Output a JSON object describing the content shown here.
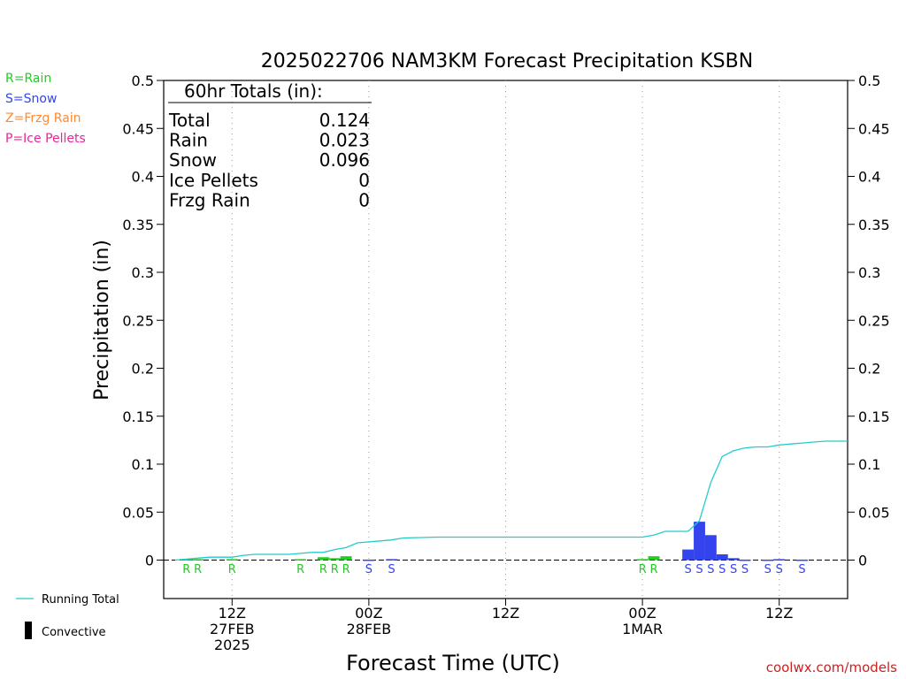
{
  "chart_data": {
    "type": "bar",
    "title": "2025022706 NAM3KM Forecast Precipitation KSBN",
    "xlabel": "Forecast Time (UTC)",
    "ylabel": "Precipitation (in)",
    "ylim": [
      0,
      0.5
    ],
    "yticks": [
      "0",
      "0.05",
      "0.1",
      "0.15",
      "0.2",
      "0.25",
      "0.3",
      "0.35",
      "0.4",
      "0.45",
      "0.5"
    ],
    "xlim": [
      6,
      66
    ],
    "xticks": [
      {
        "hour": 12,
        "labels": [
          "12Z",
          "27FEB",
          "2025"
        ]
      },
      {
        "hour": 24,
        "labels": [
          "00Z",
          "28FEB"
        ]
      },
      {
        "hour": 36,
        "labels": [
          "12Z"
        ]
      },
      {
        "hour": 48,
        "labels": [
          "00Z",
          "1MAR"
        ]
      },
      {
        "hour": 60,
        "labels": [
          "12Z"
        ]
      }
    ],
    "grid": "vertical dotted at 12-hour intervals",
    "precip_type_legend": [
      {
        "label": "R=Rain",
        "color": "#22cc22"
      },
      {
        "label": "S=Snow",
        "color": "#3344ee"
      },
      {
        "label": "Z=Frzg Rain",
        "color": "#ff8833"
      },
      {
        "label": "P=Ice Pellets",
        "color": "#ee2299"
      }
    ],
    "series_legend": [
      {
        "label": "Running Total",
        "color": "#22cccc",
        "kind": "line"
      },
      {
        "label": "Convective",
        "color": "#000000",
        "kind": "bar"
      }
    ],
    "totals": {
      "header": "60hr Totals (in):",
      "rows": [
        {
          "label": "Total",
          "value": "0.124"
        },
        {
          "label": "Rain",
          "value": "0.023"
        },
        {
          "label": "Snow",
          "value": "0.096"
        },
        {
          "label": "Ice Pellets",
          "value": "0"
        },
        {
          "label": "Frzg Rain",
          "value": "0"
        }
      ]
    },
    "bars": [
      {
        "hour": 8,
        "value": 0.001,
        "type": "R"
      },
      {
        "hour": 9,
        "value": 0.001,
        "type": "R"
      },
      {
        "hour": 12,
        "value": 0.001,
        "type": "R"
      },
      {
        "hour": 18,
        "value": 0.001,
        "type": "R"
      },
      {
        "hour": 20,
        "value": 0.003,
        "type": "R"
      },
      {
        "hour": 21,
        "value": 0.002,
        "type": "R"
      },
      {
        "hour": 22,
        "value": 0.004,
        "type": "R"
      },
      {
        "hour": 24,
        "value": 0.0005,
        "type": "S"
      },
      {
        "hour": 26,
        "value": 0.001,
        "type": "S"
      },
      {
        "hour": 48,
        "value": 0.001,
        "type": "R"
      },
      {
        "hour": 49,
        "value": 0.004,
        "type": "R"
      },
      {
        "hour": 52,
        "value": 0.011,
        "type": "S"
      },
      {
        "hour": 53,
        "value": 0.04,
        "type": "S"
      },
      {
        "hour": 54,
        "value": 0.026,
        "type": "S"
      },
      {
        "hour": 55,
        "value": 0.006,
        "type": "S"
      },
      {
        "hour": 56,
        "value": 0.002,
        "type": "S"
      },
      {
        "hour": 57,
        "value": 0.0005,
        "type": "S"
      },
      {
        "hour": 59,
        "value": 0.0005,
        "type": "S"
      },
      {
        "hour": 60,
        "value": 0.001,
        "type": "S"
      },
      {
        "hour": 62,
        "value": 0.0005,
        "type": "S"
      }
    ],
    "running_total": {
      "x": [
        7,
        8,
        9,
        10,
        11,
        12,
        13,
        14,
        15,
        16,
        17,
        18,
        19,
        20,
        21,
        22,
        23,
        24,
        25,
        26,
        27,
        30,
        36,
        42,
        48,
        49,
        50,
        51,
        52,
        53,
        54,
        55,
        56,
        57,
        58,
        59,
        60,
        61,
        62,
        63,
        64,
        65,
        66
      ],
      "y": [
        0,
        0.001,
        0.002,
        0.003,
        0.003,
        0.003,
        0.005,
        0.006,
        0.006,
        0.006,
        0.006,
        0.007,
        0.008,
        0.008,
        0.011,
        0.013,
        0.018,
        0.019,
        0.02,
        0.021,
        0.023,
        0.024,
        0.024,
        0.024,
        0.024,
        0.026,
        0.03,
        0.03,
        0.03,
        0.041,
        0.081,
        0.108,
        0.114,
        0.117,
        0.118,
        0.118,
        0.12,
        0.121,
        0.122,
        0.123,
        0.124,
        0.124,
        0.124
      ]
    }
  },
  "watermark": "coolwx.com/models"
}
